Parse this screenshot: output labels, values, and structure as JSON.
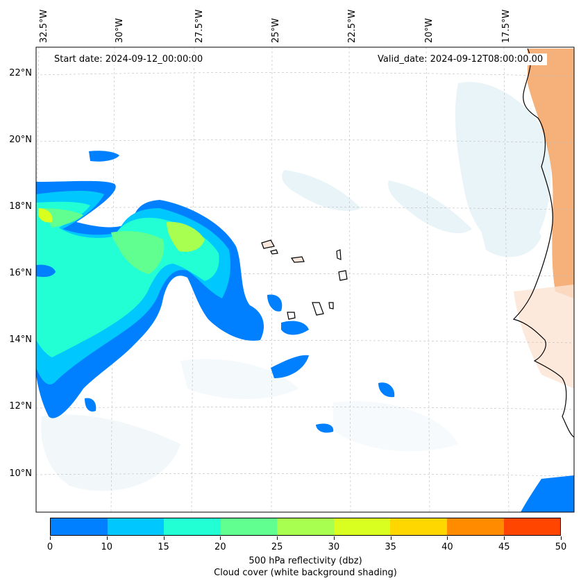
{
  "map": {
    "start_date": "Start date: 2024-09-12_00:00:00",
    "valid_date": "Valid_date: 2024-09-12T08:00:00.00",
    "longitude_labels": [
      "32.5°W",
      "30°W",
      "27.5°W",
      "25°W",
      "22.5°W",
      "20°W",
      "17.5°W"
    ],
    "latitude_labels": [
      "22°N",
      "20°N",
      "18°N",
      "16°N",
      "14°N",
      "12°N",
      "10°N"
    ],
    "colors": {
      "reflectivity_low": "#0080ff",
      "reflectivity_mid": "#22ffd4",
      "reflectivity_high": "#a8ff50",
      "cloud_shading": "#d8ebf2",
      "land_temperature": "#f4a261",
      "coastline": "#000000"
    }
  },
  "colorbar": {
    "label_line1": "500 hPa reflectivity (dbz)",
    "label_line2": "Cloud cover (white background shading)",
    "ticks": [
      "0",
      "10",
      "15",
      "20",
      "25",
      "30",
      "35",
      "40",
      "45",
      "50"
    ],
    "colors": [
      "#0080ff",
      "#00c8ff",
      "#22ffd4",
      "#60ff90",
      "#a8ff50",
      "#d8ff20",
      "#ffd700",
      "#ff8c00",
      "#ff4500"
    ]
  }
}
